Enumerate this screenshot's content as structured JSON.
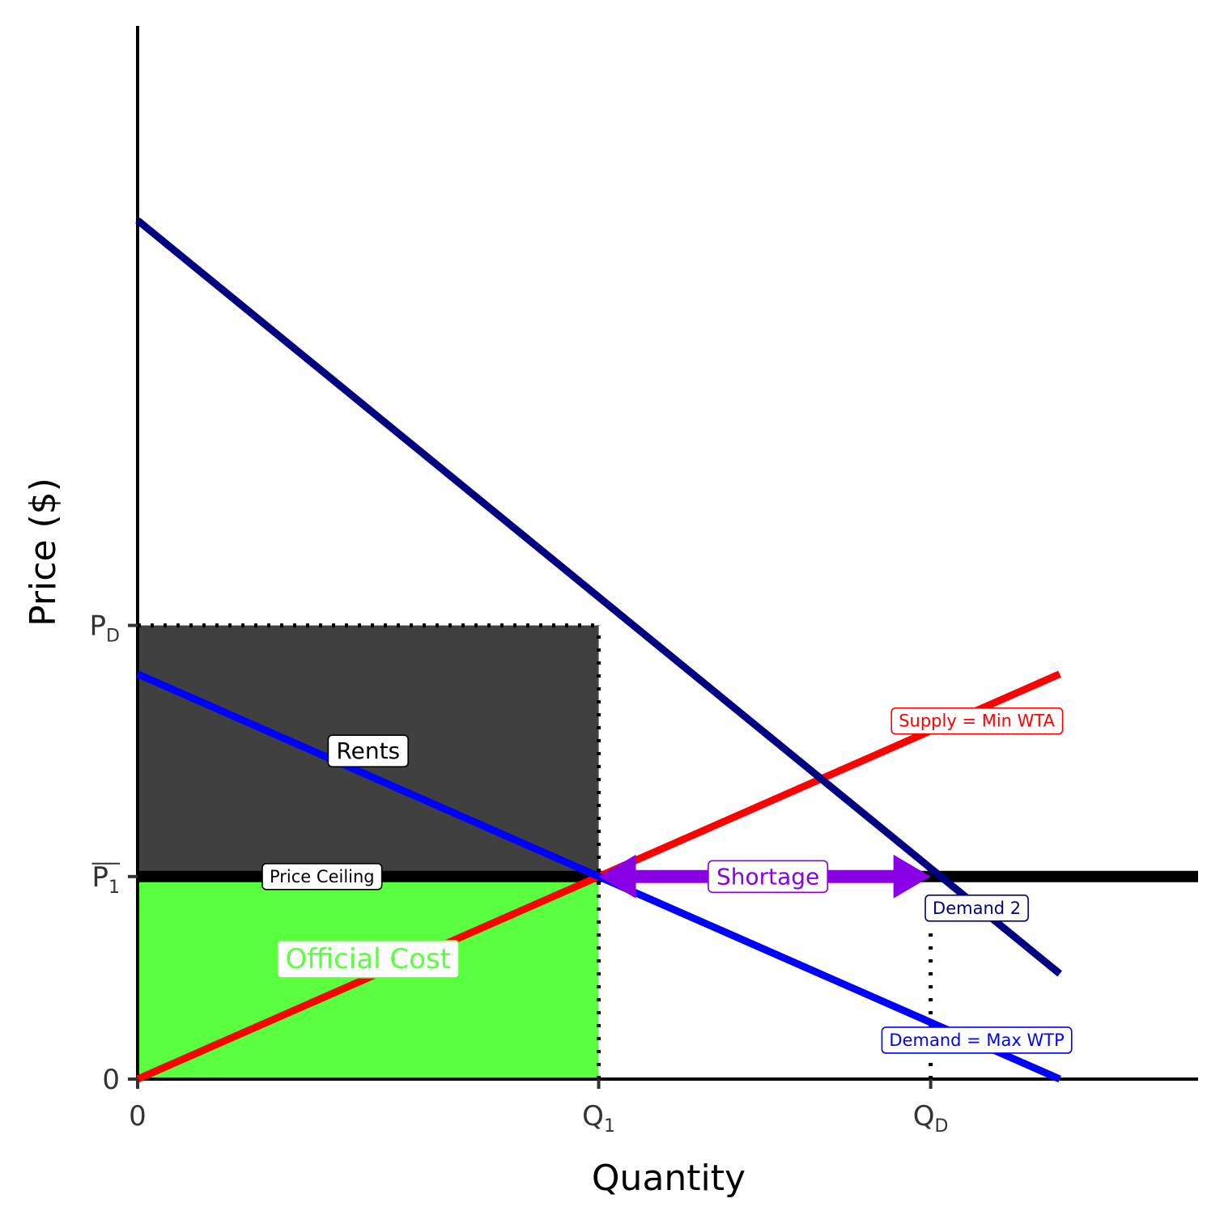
{
  "chart_data": {
    "type": "line",
    "title": "",
    "xlabel": "Quantity",
    "ylabel": "Price ($)",
    "xlim": [
      0,
      11.5
    ],
    "ylim": [
      0,
      13
    ],
    "x_ticks": [
      {
        "value": 0,
        "label": "0",
        "sub": ""
      },
      {
        "value": 5,
        "label": "Q",
        "sub": "1"
      },
      {
        "value": 8.6,
        "label": "Q",
        "sub": "D"
      }
    ],
    "y_ticks": [
      {
        "value": 0,
        "label": "0",
        "sub": "",
        "overline": false
      },
      {
        "value": 2.5,
        "label": "P",
        "sub": "1",
        "overline": true
      },
      {
        "value": 5.6,
        "label": "P",
        "sub": "D",
        "overline": false
      }
    ],
    "colors": {
      "supply": "#ff0000",
      "demand": "#0000ff",
      "demand2": "#000080",
      "ceiling": "#000000",
      "shortage": "#8a00e6",
      "rents_fill": "#404040",
      "official_cost_fill": "#5aff40"
    },
    "series": [
      {
        "name": "Supply = Min WTA",
        "points": [
          [
            0,
            0
          ],
          [
            10,
            5
          ]
        ]
      },
      {
        "name": "Demand = Max WTP",
        "points": [
          [
            0,
            5
          ],
          [
            10,
            0
          ]
        ]
      },
      {
        "name": "Demand 2",
        "points": [
          [
            0,
            10.6
          ],
          [
            10,
            1.3
          ]
        ]
      }
    ],
    "price_ceiling": {
      "label": "Price Ceiling",
      "value": 2.5
    },
    "areas": [
      {
        "name": "Rents",
        "x": [
          0,
          5
        ],
        "y": [
          2.5,
          5.6
        ]
      },
      {
        "name": "Official Cost",
        "x": [
          0,
          5
        ],
        "y": [
          0,
          2.5
        ]
      }
    ],
    "shortage": {
      "label": "Shortage",
      "from": 5,
      "to": 8.6,
      "at": 2.5
    },
    "guides": [
      {
        "orientation": "h",
        "at": 5.6,
        "from": 0,
        "to": 5
      },
      {
        "orientation": "v",
        "at": 5,
        "from": 0,
        "to": 5.6
      },
      {
        "orientation": "v",
        "at": 8.6,
        "from": 0,
        "to": 1.8
      }
    ],
    "annotations": [
      {
        "text": "Rents",
        "x": 2.5,
        "y": 4.05,
        "color": "#000000",
        "size": "md"
      },
      {
        "text": "Official Cost",
        "x": 2.5,
        "y": 1.48,
        "color": "#5aff40",
        "size": "lg"
      },
      {
        "text": "Price Ceiling",
        "x": 2.0,
        "y": 2.5,
        "color": "#000000",
        "size": "sm"
      },
      {
        "text": "Supply = Min WTA",
        "x": 9.1,
        "y": 4.42,
        "color": "#ff0000",
        "size": "sm"
      },
      {
        "text": "Demand = Max WTP",
        "x": 9.1,
        "y": 0.48,
        "color": "#0000ff",
        "size": "sm"
      },
      {
        "text": "Demand 2",
        "x": 9.1,
        "y": 2.11,
        "color": "#000080",
        "size": "sm"
      }
    ],
    "grid": false,
    "legend": "none"
  }
}
